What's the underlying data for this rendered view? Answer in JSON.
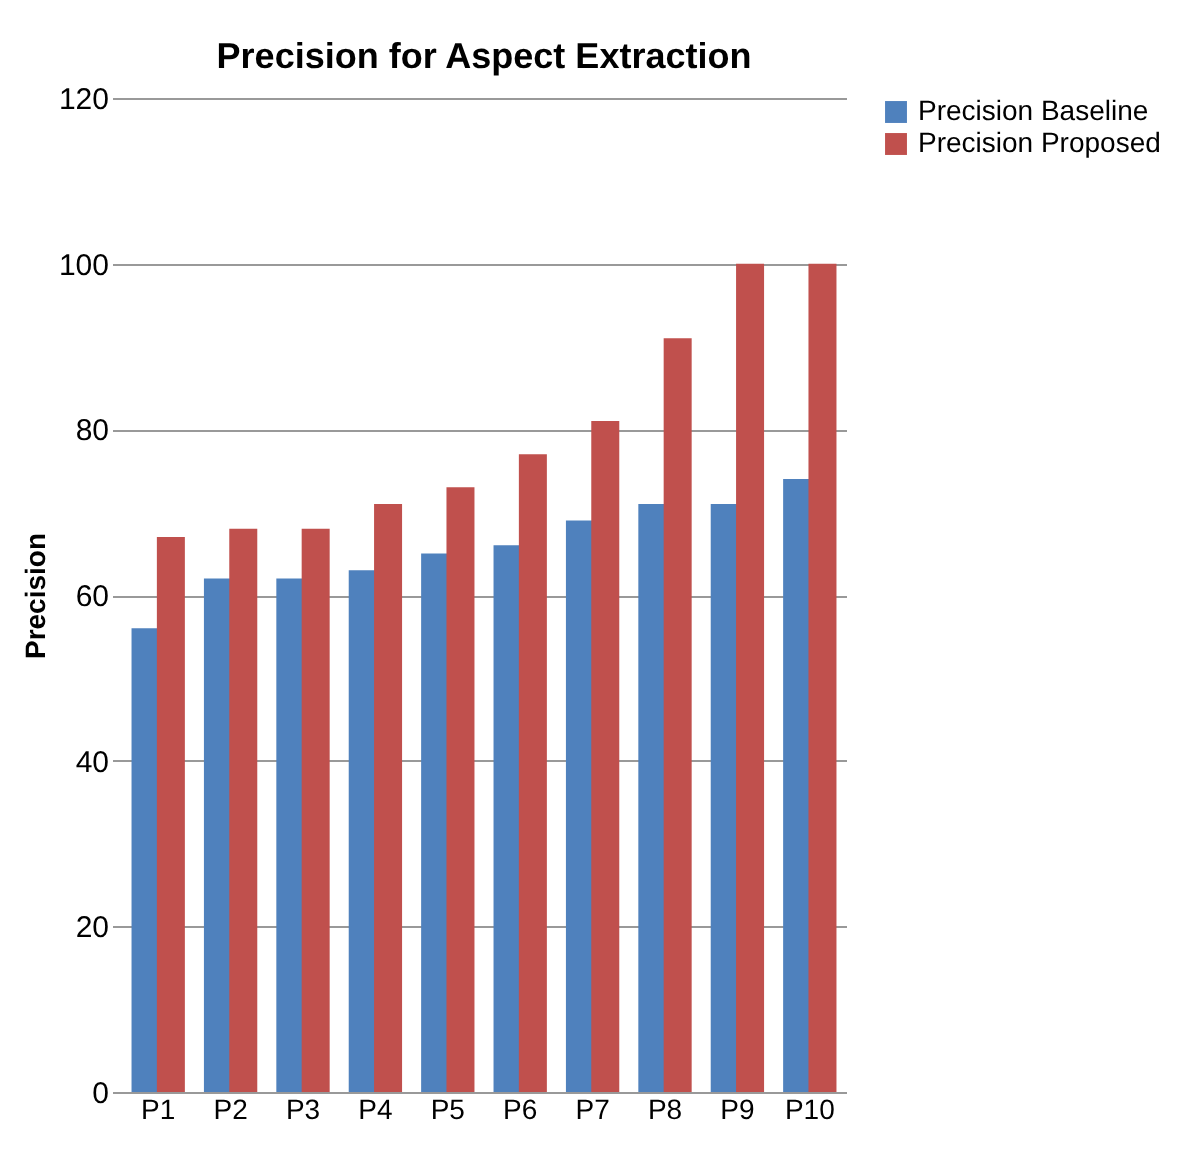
{
  "chart_data": {
    "type": "bar",
    "title": "Precision for Aspect Extraction",
    "ylabel": "Precision",
    "categories": [
      "P1",
      "P2",
      "P3",
      "P4",
      "P5",
      "P6",
      "P7",
      "P8",
      "P9",
      "P10"
    ],
    "series": [
      {
        "name": "Precision Baseline",
        "color": "#4f81bd",
        "values": [
          56,
          62,
          62,
          63,
          65,
          66,
          69,
          71,
          71,
          74
        ]
      },
      {
        "name": "Precision Proposed",
        "color": "#c0504d",
        "values": [
          67,
          68,
          68,
          71,
          73,
          77,
          81,
          91,
          100,
          100
        ]
      }
    ],
    "ylim": [
      0,
      120
    ],
    "yticks": [
      0,
      20,
      40,
      60,
      80,
      100,
      120
    ],
    "grid": "y",
    "legend": "right"
  }
}
